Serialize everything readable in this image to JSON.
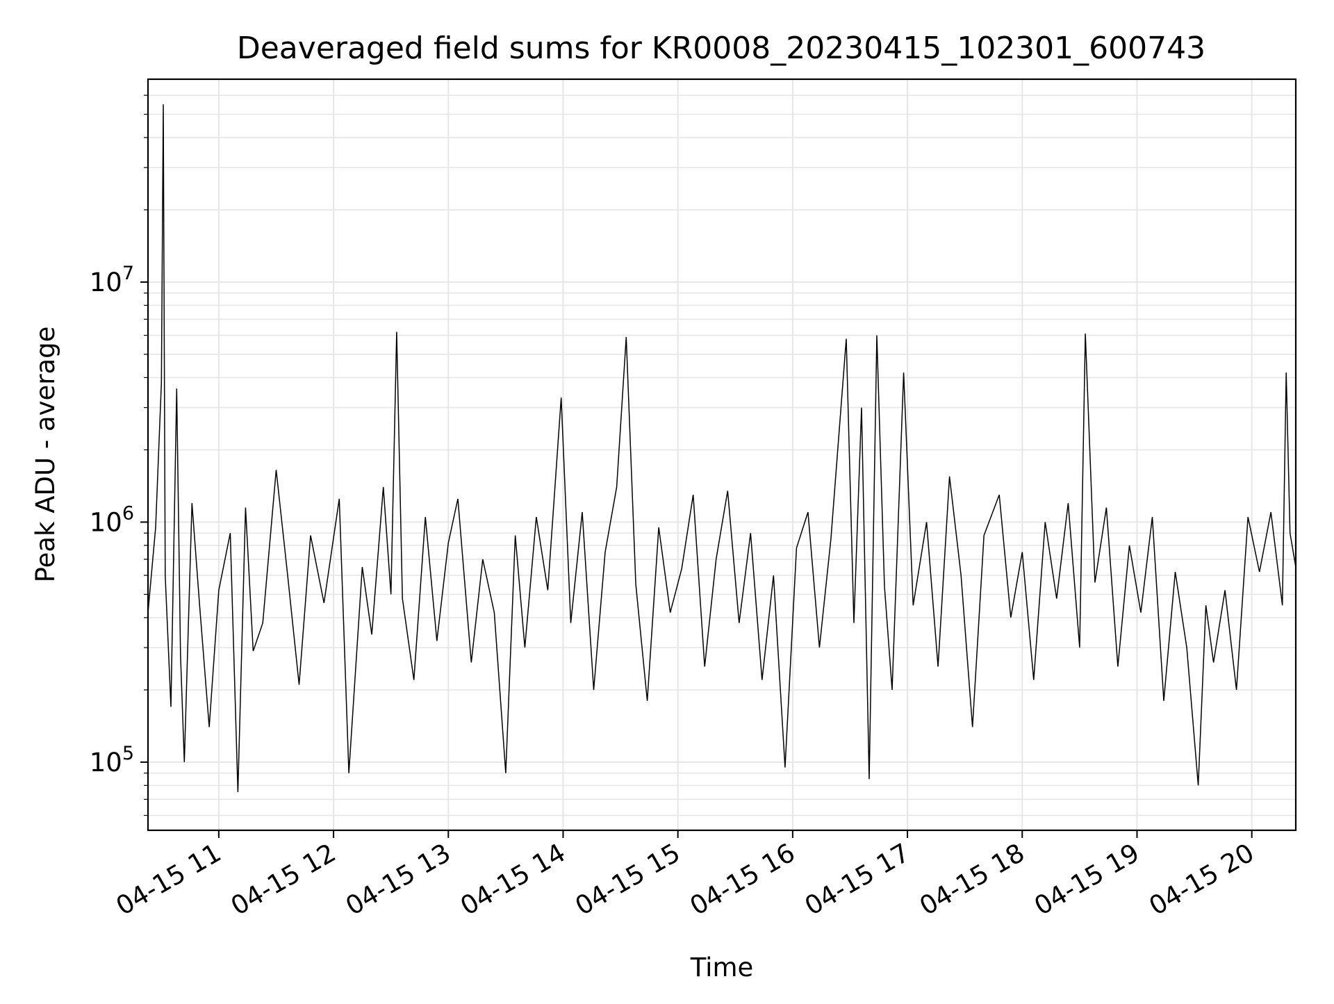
{
  "chart_data": {
    "type": "line",
    "title": "Deaveraged field sums for KR0008_20230415_102301_600743",
    "xlabel": "Time",
    "ylabel": "Peak ADU - average",
    "yscale": "log",
    "ylim": [
      52000,
      70000000
    ],
    "xlim": [
      "2023-04-15 10:23",
      "2023-04-15 20:23"
    ],
    "grid": true,
    "grid_minor": true,
    "line_color": "#000000",
    "grid_color": "#e6e6e6",
    "x_ticks": [
      {
        "t": "2023-04-15 11:00",
        "label": "04-15 11"
      },
      {
        "t": "2023-04-15 12:00",
        "label": "04-15 12"
      },
      {
        "t": "2023-04-15 13:00",
        "label": "04-15 13"
      },
      {
        "t": "2023-04-15 14:00",
        "label": "04-15 14"
      },
      {
        "t": "2023-04-15 15:00",
        "label": "04-15 15"
      },
      {
        "t": "2023-04-15 16:00",
        "label": "04-15 16"
      },
      {
        "t": "2023-04-15 17:00",
        "label": "04-15 17"
      },
      {
        "t": "2023-04-15 18:00",
        "label": "04-15 18"
      },
      {
        "t": "2023-04-15 19:00",
        "label": "04-15 19"
      },
      {
        "t": "2023-04-15 20:00",
        "label": "04-15 20"
      }
    ],
    "y_ticks": [
      {
        "v": 100000,
        "base": "10",
        "exp": "5"
      },
      {
        "v": 1000000,
        "base": "10",
        "exp": "6"
      },
      {
        "v": 10000000,
        "base": "10",
        "exp": "7"
      }
    ],
    "series": [
      {
        "points": [
          [
            "2023-04-15 10:23",
            420000
          ],
          [
            "2023-04-15 10:27",
            950000
          ],
          [
            "2023-04-15 10:30",
            3800000
          ],
          [
            "2023-04-15 10:31",
            55000000
          ],
          [
            "2023-04-15 10:32",
            600000
          ],
          [
            "2023-04-15 10:35",
            170000
          ],
          [
            "2023-04-15 10:38",
            3600000
          ],
          [
            "2023-04-15 10:40",
            280000
          ],
          [
            "2023-04-15 10:42",
            100000
          ],
          [
            "2023-04-15 10:46",
            1200000
          ],
          [
            "2023-04-15 10:50",
            450000
          ],
          [
            "2023-04-15 10:55",
            140000
          ],
          [
            "2023-04-15 11:00",
            520000
          ],
          [
            "2023-04-15 11:06",
            900000
          ],
          [
            "2023-04-15 11:10",
            75000
          ],
          [
            "2023-04-15 11:14",
            1150000
          ],
          [
            "2023-04-15 11:18",
            290000
          ],
          [
            "2023-04-15 11:23",
            380000
          ],
          [
            "2023-04-15 11:30",
            1650000
          ],
          [
            "2023-04-15 11:36",
            600000
          ],
          [
            "2023-04-15 11:42",
            210000
          ],
          [
            "2023-04-15 11:48",
            880000
          ],
          [
            "2023-04-15 11:55",
            460000
          ],
          [
            "2023-04-15 12:03",
            1250000
          ],
          [
            "2023-04-15 12:08",
            90000
          ],
          [
            "2023-04-15 12:15",
            650000
          ],
          [
            "2023-04-15 12:20",
            340000
          ],
          [
            "2023-04-15 12:26",
            1400000
          ],
          [
            "2023-04-15 12:30",
            500000
          ],
          [
            "2023-04-15 12:33",
            6200000
          ],
          [
            "2023-04-15 12:36",
            480000
          ],
          [
            "2023-04-15 12:42",
            220000
          ],
          [
            "2023-04-15 12:48",
            1050000
          ],
          [
            "2023-04-15 12:54",
            320000
          ],
          [
            "2023-04-15 13:00",
            820000
          ],
          [
            "2023-04-15 13:05",
            1250000
          ],
          [
            "2023-04-15 13:12",
            260000
          ],
          [
            "2023-04-15 13:18",
            700000
          ],
          [
            "2023-04-15 13:24",
            420000
          ],
          [
            "2023-04-15 13:30",
            90000
          ],
          [
            "2023-04-15 13:35",
            880000
          ],
          [
            "2023-04-15 13:40",
            300000
          ],
          [
            "2023-04-15 13:46",
            1050000
          ],
          [
            "2023-04-15 13:52",
            520000
          ],
          [
            "2023-04-15 13:59",
            3300000
          ],
          [
            "2023-04-15 14:04",
            380000
          ],
          [
            "2023-04-15 14:10",
            1100000
          ],
          [
            "2023-04-15 14:16",
            200000
          ],
          [
            "2023-04-15 14:22",
            750000
          ],
          [
            "2023-04-15 14:28",
            1400000
          ],
          [
            "2023-04-15 14:33",
            5900000
          ],
          [
            "2023-04-15 14:38",
            550000
          ],
          [
            "2023-04-15 14:44",
            180000
          ],
          [
            "2023-04-15 14:50",
            950000
          ],
          [
            "2023-04-15 14:56",
            420000
          ],
          [
            "2023-04-15 15:02",
            640000
          ],
          [
            "2023-04-15 15:08",
            1300000
          ],
          [
            "2023-04-15 15:14",
            250000
          ],
          [
            "2023-04-15 15:20",
            700000
          ],
          [
            "2023-04-15 15:26",
            1350000
          ],
          [
            "2023-04-15 15:32",
            380000
          ],
          [
            "2023-04-15 15:38",
            900000
          ],
          [
            "2023-04-15 15:44",
            220000
          ],
          [
            "2023-04-15 15:50",
            600000
          ],
          [
            "2023-04-15 15:56",
            95000
          ],
          [
            "2023-04-15 16:02",
            780000
          ],
          [
            "2023-04-15 16:08",
            1100000
          ],
          [
            "2023-04-15 16:14",
            300000
          ],
          [
            "2023-04-15 16:20",
            850000
          ],
          [
            "2023-04-15 16:28",
            5800000
          ],
          [
            "2023-04-15 16:32",
            380000
          ],
          [
            "2023-04-15 16:36",
            3000000
          ],
          [
            "2023-04-15 16:40",
            85000
          ],
          [
            "2023-04-15 16:44",
            6000000
          ],
          [
            "2023-04-15 16:48",
            540000
          ],
          [
            "2023-04-15 16:52",
            200000
          ],
          [
            "2023-04-15 16:58",
            4200000
          ],
          [
            "2023-04-15 17:03",
            450000
          ],
          [
            "2023-04-15 17:10",
            1000000
          ],
          [
            "2023-04-15 17:16",
            250000
          ],
          [
            "2023-04-15 17:22",
            1550000
          ],
          [
            "2023-04-15 17:28",
            600000
          ],
          [
            "2023-04-15 17:34",
            140000
          ],
          [
            "2023-04-15 17:40",
            880000
          ],
          [
            "2023-04-15 17:48",
            1300000
          ],
          [
            "2023-04-15 17:54",
            400000
          ],
          [
            "2023-04-15 18:00",
            750000
          ],
          [
            "2023-04-15 18:06",
            220000
          ],
          [
            "2023-04-15 18:12",
            1000000
          ],
          [
            "2023-04-15 18:18",
            480000
          ],
          [
            "2023-04-15 18:24",
            1200000
          ],
          [
            "2023-04-15 18:30",
            300000
          ],
          [
            "2023-04-15 18:33",
            6100000
          ],
          [
            "2023-04-15 18:38",
            560000
          ],
          [
            "2023-04-15 18:44",
            1150000
          ],
          [
            "2023-04-15 18:50",
            250000
          ],
          [
            "2023-04-15 18:56",
            800000
          ],
          [
            "2023-04-15 19:02",
            420000
          ],
          [
            "2023-04-15 19:08",
            1050000
          ],
          [
            "2023-04-15 19:14",
            180000
          ],
          [
            "2023-04-15 19:20",
            620000
          ],
          [
            "2023-04-15 19:26",
            300000
          ],
          [
            "2023-04-15 19:32",
            80000
          ],
          [
            "2023-04-15 19:36",
            450000
          ],
          [
            "2023-04-15 19:40",
            260000
          ],
          [
            "2023-04-15 19:46",
            520000
          ],
          [
            "2023-04-15 19:52",
            200000
          ],
          [
            "2023-04-15 19:58",
            1050000
          ],
          [
            "2023-04-15 20:04",
            620000
          ],
          [
            "2023-04-15 20:10",
            1100000
          ],
          [
            "2023-04-15 20:16",
            450000
          ],
          [
            "2023-04-15 20:18",
            4200000
          ],
          [
            "2023-04-15 20:20",
            900000
          ],
          [
            "2023-04-15 20:23",
            650000
          ]
        ]
      }
    ]
  }
}
